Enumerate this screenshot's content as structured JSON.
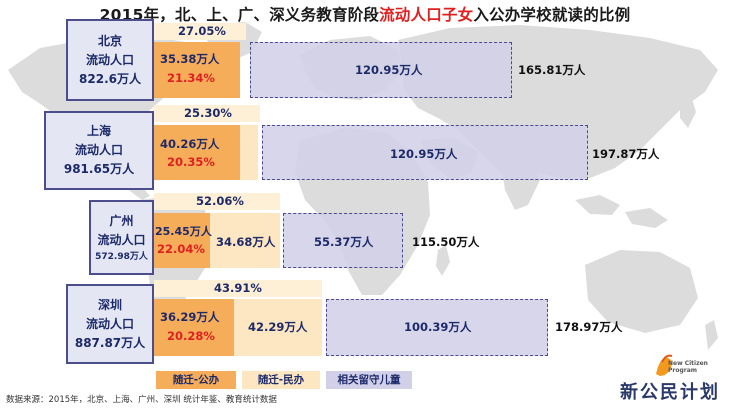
{
  "title": {
    "prefix": "2015年，北、上、广、深义务教育阶段",
    "highlight": "流动人口子女",
    "suffix": "入公办学校就读的比例"
  },
  "chart_data": {
    "type": "bar",
    "stacked": true,
    "orientation": "horizontal",
    "unit": "万人",
    "categories": [
      "北京",
      "上海",
      "广州",
      "深圳"
    ],
    "series": [
      {
        "name": "随迁-公办",
        "display": [
          "35.38万人",
          "40.26万人",
          "25.45万人",
          "36.29万人"
        ],
        "values": [
          35.38,
          40.26,
          25.45,
          36.29
        ]
      },
      {
        "name": "随迁-民办",
        "display": [
          "",
          "",
          "34.68万人",
          "42.29万人"
        ],
        "values": [
          null,
          null,
          34.68,
          42.29
        ]
      },
      {
        "name": "相关留守儿童",
        "display": [
          "120.95万人",
          "120.95万人",
          "55.37万人",
          "100.39万人"
        ],
        "values": [
          120.95,
          120.95,
          55.37,
          100.39
        ]
      }
    ],
    "totals": [
      "165.81万人",
      "197.87万人",
      "115.50万人",
      "178.97万人"
    ],
    "pct_of_total": [
      "21.34%",
      "20.35%",
      "22.04%",
      "20.28%"
    ],
    "pct_of_migrant": [
      "27.05%",
      "25.30%",
      "52.06%",
      "43.91%"
    ],
    "city_labels": [
      {
        "name": "北京",
        "sub": "流动人口",
        "pop": "822.6万人"
      },
      {
        "name": "上海",
        "sub": "流动人口",
        "pop": "981.65万人"
      },
      {
        "name": "广州",
        "sub": "流动人口",
        "pop": "572.98万人"
      },
      {
        "name": "深圳",
        "sub": "流动人口",
        "pop": "887.87万人"
      }
    ],
    "legend": [
      "随迁-公办",
      "随迁-民办",
      "相关留守儿童"
    ],
    "legend_position": "bottom"
  },
  "source": "数据来源：2015年，北京、上海、广州、深圳 统计年鉴、教育统计数据",
  "logo": {
    "main": "新公民计划",
    "sub1": "New Citizen",
    "sub2": "Program"
  },
  "colors": {
    "public": "#f6ad5a",
    "private": "#fde7c2",
    "left_behind": "#d2d0e8",
    "city_border": "#4b4d8c",
    "highlight_red": "#e02020",
    "map": "#dadada"
  }
}
